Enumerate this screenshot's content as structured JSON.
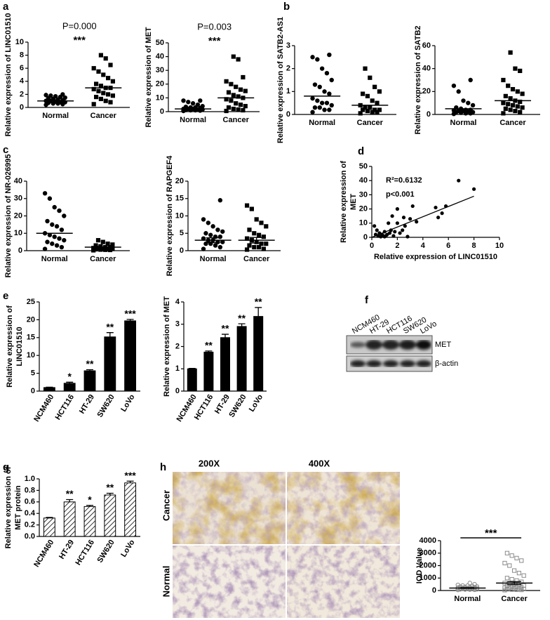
{
  "chart_data": [
    {
      "type": "dotplot",
      "panel": "a",
      "annotation": "P=0.000",
      "significance": "***",
      "ylabel": "Relative expression of LINC01510",
      "categories": [
        "Normal",
        "Cancer"
      ],
      "markers": [
        "circle",
        "square"
      ],
      "color": "#000000",
      "marker_fill": "#000000",
      "values": [
        [
          0.4,
          0.5,
          0.6,
          0.6,
          0.7,
          0.8,
          0.8,
          0.9,
          1.0,
          1.0,
          1.1,
          1.2,
          1.3,
          1.4,
          1.5,
          1.6,
          1.7,
          1.8,
          1.9,
          2.0
        ],
        [
          0.5,
          0.8,
          1.0,
          1.3,
          1.6,
          1.8,
          2.0,
          2.2,
          2.5,
          2.8,
          3.0,
          3.0,
          3.3,
          3.6,
          4.0,
          4.5,
          5.0,
          5.5,
          6.0,
          6.5,
          7.5,
          8.0
        ]
      ],
      "means": [
        1.0,
        3.0
      ],
      "ylim": [
        0,
        10
      ],
      "yticks": [
        0,
        2,
        4,
        6,
        8,
        10
      ]
    },
    {
      "type": "dotplot",
      "annotation": "P=0.003",
      "significance": "***",
      "ylabel": "Relative expression of MET",
      "categories": [
        "Normal",
        "Cancer"
      ],
      "markers": [
        "circle",
        "square"
      ],
      "color": "#000000",
      "marker_fill": "#000000",
      "values": [
        [
          0.5,
          0.8,
          1,
          1,
          1.2,
          1.5,
          1.5,
          2,
          2,
          2,
          2.5,
          3,
          3,
          3.5,
          4,
          5,
          6,
          7,
          8,
          8
        ],
        [
          0.5,
          1,
          1.5,
          2,
          3,
          4,
          5,
          6,
          8,
          9,
          10,
          11,
          12,
          14,
          15,
          16,
          18,
          20,
          22,
          25,
          38,
          40
        ]
      ],
      "means": [
        2,
        10
      ],
      "ylim": [
        0,
        50
      ],
      "yticks": [
        0,
        10,
        20,
        30,
        40,
        50
      ]
    },
    {
      "type": "dotplot",
      "panel": "b",
      "ylabel": "Relative expression of SATB2-AS1",
      "categories": [
        "Normal",
        "Cancer"
      ],
      "markers": [
        "circle",
        "square"
      ],
      "color": "#000000",
      "marker_fill": "#000000",
      "values": [
        [
          0.1,
          0.2,
          0.2,
          0.3,
          0.3,
          0.4,
          0.5,
          0.5,
          0.6,
          0.7,
          0.9,
          1.0,
          1.2,
          1.3,
          1.5,
          1.8,
          2.0,
          2.4,
          2.5,
          2.6
        ],
        [
          0.05,
          0.1,
          0.1,
          0.15,
          0.2,
          0.2,
          0.2,
          0.3,
          0.3,
          0.4,
          0.5,
          0.6,
          0.8,
          0.9,
          1.0,
          1.2,
          1.6,
          2.0
        ]
      ],
      "means": [
        0.8,
        0.4
      ],
      "ylim": [
        0,
        3
      ],
      "yticks": [
        0,
        1,
        2,
        3
      ]
    },
    {
      "type": "dotplot",
      "ylabel": "Relative expression of SATB2",
      "categories": [
        "Normal",
        "Cancer"
      ],
      "markers": [
        "circle",
        "square"
      ],
      "color": "#000000",
      "marker_fill": "#000000",
      "values": [
        [
          0.5,
          1,
          1,
          1.5,
          2,
          2,
          2.5,
          3,
          3,
          3.5,
          4,
          4,
          5,
          6,
          8,
          10,
          12,
          20,
          25,
          30
        ],
        [
          1,
          2,
          3,
          4,
          5,
          6,
          7,
          8,
          9,
          10,
          11,
          12,
          14,
          16,
          18,
          20,
          22,
          25,
          30,
          38,
          40,
          54
        ]
      ],
      "means": [
        5,
        12
      ],
      "ylim": [
        0,
        60
      ],
      "yticks": [
        0,
        20,
        40,
        60
      ]
    },
    {
      "type": "dotplot",
      "panel": "c",
      "ylabel": "Relative expression of NR-026995",
      "categories": [
        "Normal",
        "Cancer"
      ],
      "markers": [
        "circle",
        "square"
      ],
      "color": "#000000",
      "marker_fill": "#000000",
      "values": [
        [
          1,
          2,
          3,
          4,
          5,
          6,
          7,
          8,
          9,
          10,
          12,
          14,
          15,
          17,
          20,
          23,
          25,
          30,
          33
        ],
        [
          0.2,
          0.4,
          0.5,
          0.6,
          0.8,
          1,
          1,
          1.2,
          1.5,
          1.5,
          2,
          2,
          2.5,
          3,
          3.5,
          4,
          5,
          6
        ]
      ],
      "means": [
        10,
        2
      ],
      "ylim": [
        0,
        40
      ],
      "yticks": [
        0,
        10,
        20,
        30,
        40
      ]
    },
    {
      "type": "dotplot",
      "ylabel": "Relative expression of  RAPGEF4",
      "categories": [
        "Normal",
        "Cancer"
      ],
      "markers": [
        "circle",
        "square"
      ],
      "color": "#000000",
      "marker_fill": "#000000",
      "values": [
        [
          0.5,
          1,
          1.5,
          2,
          2,
          2.5,
          2.5,
          3,
          3,
          3.5,
          4,
          4,
          4.5,
          5,
          5.5,
          6,
          7,
          8,
          9,
          14.5
        ],
        [
          0.3,
          0.5,
          1,
          1,
          1.5,
          2,
          2,
          2.5,
          3,
          3.5,
          4,
          4.5,
          5,
          6,
          7,
          8,
          9,
          12,
          13
        ]
      ],
      "means": [
        3,
        3
      ],
      "sem": [
        0.7,
        0.8
      ],
      "ylim": [
        0,
        20
      ],
      "yticks": [
        0,
        5,
        10,
        15,
        20
      ]
    },
    {
      "type": "scatter",
      "panel": "d",
      "ylabel": [
        "Relative expression of",
        "MET"
      ],
      "xlabel": "Relative expression of LINC01510",
      "annotations": [
        "R²=0.6132",
        "p<0.001"
      ],
      "color": "#000000",
      "x": [
        0.2,
        0.3,
        0.4,
        0.5,
        0.6,
        0.7,
        0.8,
        0.9,
        1.0,
        1.0,
        1.1,
        1.2,
        1.3,
        1.4,
        1.5,
        1.6,
        1.7,
        1.8,
        2.0,
        2.0,
        2.2,
        2.4,
        2.5,
        2.6,
        2.8,
        3.0,
        3.2,
        3.5,
        5.0,
        5.2,
        5.5,
        5.8,
        6.8,
        8.0
      ],
      "y": [
        8,
        2,
        5,
        1,
        3,
        0.5,
        2,
        1,
        4,
        0.5,
        1,
        2,
        10,
        3,
        5,
        15,
        1,
        4,
        10,
        20,
        3,
        5,
        14,
        8,
        0.5,
        13,
        22,
        11,
        21,
        14,
        17,
        22,
        40,
        34
      ],
      "fit": {
        "x": [
          0,
          8
        ],
        "y": [
          0,
          29
        ]
      },
      "xlim": [
        0,
        10
      ],
      "xticks": [
        0,
        2,
        4,
        6,
        8,
        10
      ],
      "ylim": [
        0,
        50
      ],
      "yticks": [
        0,
        10,
        20,
        30,
        40,
        50
      ]
    },
    {
      "type": "bar",
      "panel": "e",
      "ylabel": [
        "Relative expression  of",
        "LINC01510"
      ],
      "color": "#000000",
      "hatch": false,
      "categories": [
        "NCM460",
        "HCT116",
        "HT-29",
        "SW620",
        "LoVo"
      ],
      "values": [
        1,
        2.2,
        5.7,
        15.2,
        19.7
      ],
      "errors": [
        0.1,
        0.3,
        0.3,
        1.2,
        0.4
      ],
      "stars": [
        null,
        "*",
        "**",
        "**",
        "***"
      ],
      "ylim": [
        0,
        25
      ],
      "yticks": [
        0,
        5,
        10,
        15,
        20,
        25
      ]
    },
    {
      "type": "bar",
      "ylabel": "Relative expression  of MET",
      "color": "#000000",
      "hatch": false,
      "categories": [
        "NCM460",
        "HCT116",
        "HT-29",
        "SW620",
        "LoVo"
      ],
      "values": [
        1,
        1.75,
        2.4,
        2.9,
        3.35
      ],
      "errors": [
        0.02,
        0.05,
        0.15,
        0.12,
        0.4
      ],
      "stars": [
        null,
        "**",
        "**",
        "**",
        "**"
      ],
      "ylim": [
        0,
        4
      ],
      "yticks": [
        0,
        1,
        2,
        3,
        4
      ]
    },
    {
      "type": "bar",
      "panel": "g",
      "ylabel": [
        "Relative expression of",
        "MET protein"
      ],
      "color": "#000000",
      "hatch": true,
      "categories": [
        "NCM460",
        "HT-29",
        "HCT116",
        "SW620",
        "LoVo"
      ],
      "values": [
        0.32,
        0.6,
        0.52,
        0.72,
        0.93
      ],
      "errors": [
        0.01,
        0.04,
        0.02,
        0.03,
        0.03
      ],
      "stars": [
        null,
        "**",
        "*",
        "**",
        "***"
      ],
      "ylim": [
        0,
        1.0
      ],
      "yticks": [
        {
          "value": 0,
          "label": "0.0"
        },
        0.2,
        0.4,
        0.6,
        0.8,
        {
          "value": 1.0,
          "label": "1.0"
        }
      ]
    },
    {
      "type": "dotplot",
      "ylabel": "IOD Value",
      "significance": "***",
      "bracket": true,
      "categories": [
        "Normal",
        "Cancer"
      ],
      "markers": [
        "circle",
        "square"
      ],
      "color": "#8a8a8a",
      "marker_fill": "none",
      "values": [
        [
          50,
          60,
          80,
          90,
          100,
          100,
          120,
          130,
          140,
          150,
          150,
          160,
          170,
          180,
          190,
          200,
          200,
          220,
          240,
          250,
          260,
          280,
          300,
          320,
          350,
          380,
          400,
          450,
          500,
          600
        ],
        [
          30,
          50,
          60,
          80,
          100,
          120,
          150,
          180,
          200,
          220,
          250,
          280,
          300,
          350,
          400,
          450,
          500,
          550,
          600,
          700,
          800,
          900,
          1000,
          1200,
          1400,
          1600,
          2000,
          2200,
          2400,
          2600,
          2800,
          3000
        ]
      ],
      "means": [
        200,
        600
      ],
      "sem": [
        30,
        120
      ],
      "ylim": [
        0,
        4000
      ],
      "yticks": [
        0,
        1000,
        2000,
        3000,
        4000
      ]
    }
  ],
  "blot": {
    "panel": "f",
    "lanes": [
      "NCM460",
      "HT-29",
      "HCT116",
      "SW620",
      "LoVo"
    ],
    "bands": [
      "MET",
      "β-actin"
    ]
  },
  "histology": {
    "panel": "h",
    "columns": [
      "200X",
      "400X"
    ],
    "rows": [
      "Cancer",
      "Normal"
    ]
  }
}
